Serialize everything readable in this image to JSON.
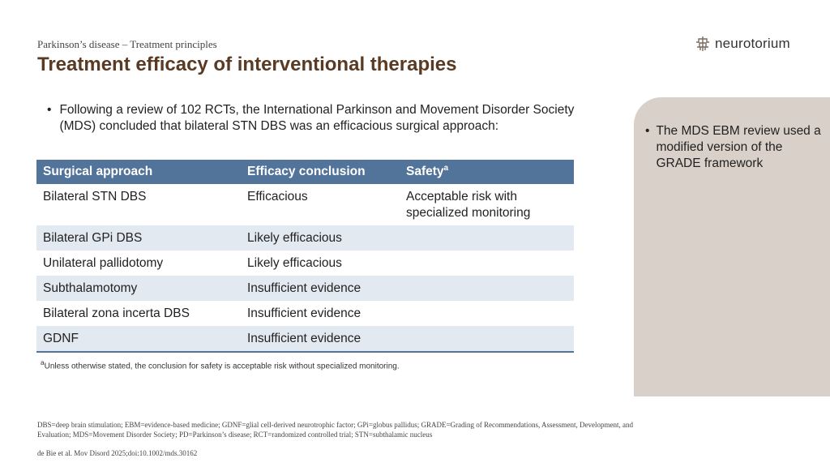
{
  "header": {
    "eyebrow": "Parkinson’s disease – Treatment principles",
    "title": "Treatment efficacy of interventional therapies",
    "logo_text": "neurotorium",
    "logo_icon": "neurotorium-logo-icon"
  },
  "main_bullet": "Following a review of 102 RCTs, the International Parkinson and Movement Disorder Society (MDS) concluded that bilateral STN DBS was an efficacious surgical approach:",
  "table": {
    "headers": [
      "Surgical approach",
      "Efficacy conclusion",
      "Safety"
    ],
    "safety_sup": "a",
    "rows": [
      [
        "Bilateral STN DBS",
        "Efficacious",
        "Acceptable risk with specialized monitoring"
      ],
      [
        "Bilateral GPi DBS",
        "Likely efficacious",
        ""
      ],
      [
        "Unilateral pallidotomy",
        "Likely efficacious",
        ""
      ],
      [
        "Subthalamotomy",
        "Insufficient evidence",
        ""
      ],
      [
        "Bilateral zona incerta DBS",
        "Insufficient evidence",
        ""
      ],
      [
        "GDNF",
        "Insufficient evidence",
        ""
      ]
    ]
  },
  "footnote": {
    "marker": "a",
    "text": "Unless otherwise stated, the conclusion for safety is acceptable risk without specialized monitoring."
  },
  "side_note": "The MDS EBM review used a modified version of the GRADE framework",
  "abbreviations": "DBS=deep brain stimulation; EBM=evidence-based medicine; GDNF=glial cell-derived neurotrophic factor; GPi=globus pallidus; GRADE=Grading of Recommendations, Assessment, Development, and Evaluation; MDS=Movement Disorder Society; PD=Parkinson’s disease; RCT=randomized controlled trial; STN=subthalamic nucleus",
  "reference": "de Bie et al. Mov Disord 2025;doi:10.1002/mds.30162",
  "colors": {
    "title": "#5a3a22",
    "table_header": "#52749a",
    "row_shade": "#e3e9f1",
    "side_panel": "#d9d0c9"
  }
}
